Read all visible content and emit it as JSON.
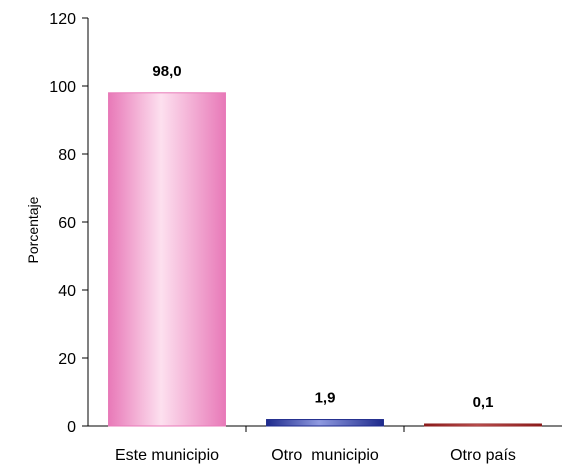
{
  "chart_data": {
    "type": "bar",
    "categories": [
      "Este municipio",
      "Otro  municipio",
      "Otro país"
    ],
    "values": [
      98.0,
      1.9,
      0.1
    ],
    "data_labels": [
      "98,0",
      "1,9",
      "0,1"
    ],
    "ylabel": "Porcentaje",
    "ylim": [
      0,
      120
    ],
    "yticks": [
      0,
      20,
      40,
      60,
      80,
      100,
      120
    ],
    "grid": false,
    "legend": "none",
    "colors": {
      "bar_0_edge": "#e879b8",
      "bar_0_light": "#fde0ef",
      "bar_1_edge": "#1e2a8c",
      "bar_1_light": "#8f9ae0",
      "bar_2_edge": "#8b1a1a",
      "bar_2_light": "#e07a7a"
    }
  }
}
